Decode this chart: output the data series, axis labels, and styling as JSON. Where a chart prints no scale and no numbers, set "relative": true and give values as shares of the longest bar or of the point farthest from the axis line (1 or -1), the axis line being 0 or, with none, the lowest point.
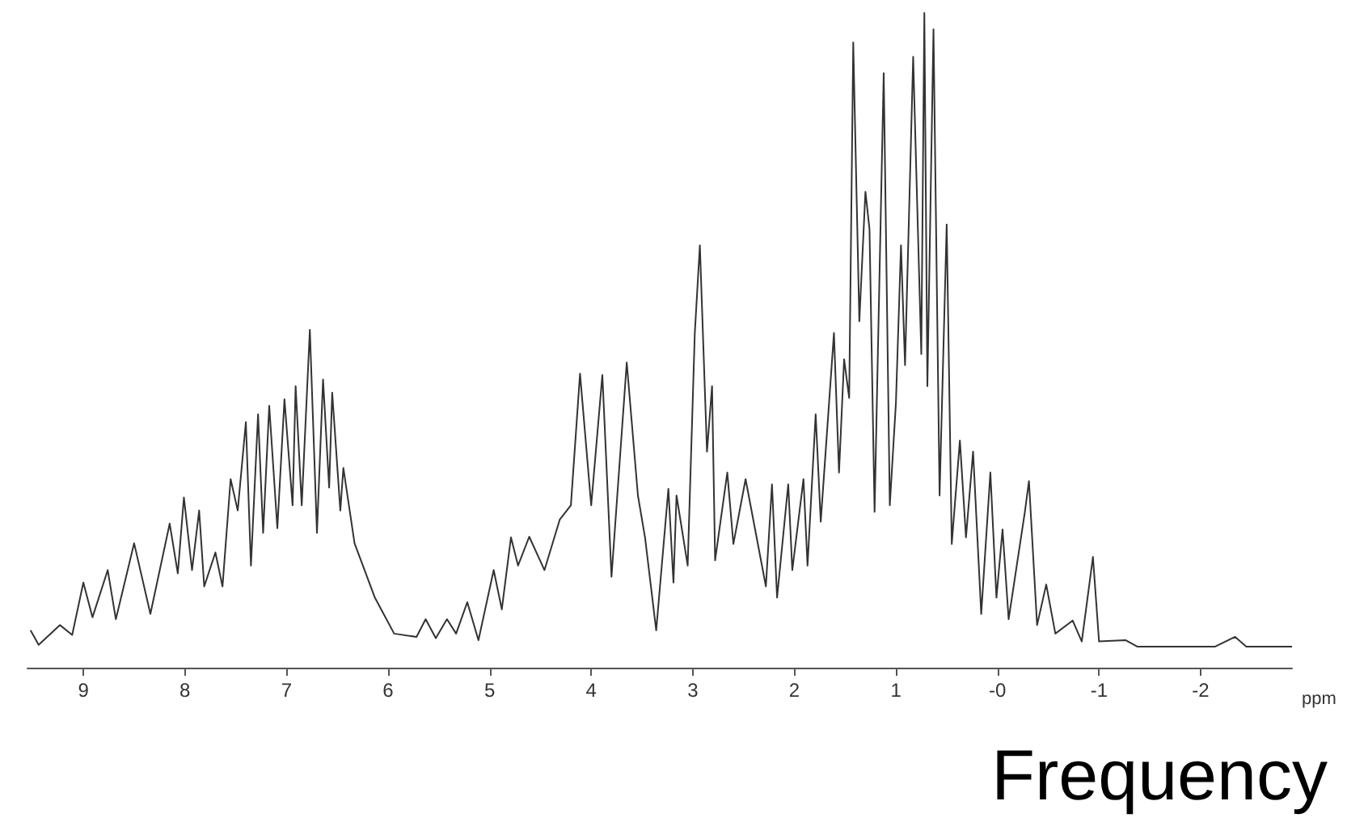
{
  "chart_data": {
    "type": "line",
    "relative": true,
    "xlabel": "ppm",
    "annotations": [
      "Frequency"
    ],
    "xlim": [
      9.55,
      -2.9
    ],
    "xticks": [
      9,
      8,
      7,
      6,
      5,
      4,
      3,
      2,
      1,
      {
        "value": 0,
        "label": "-0"
      },
      -1,
      -2
    ],
    "grid": false,
    "marker": "none",
    "line_style": "solid",
    "series": [
      {
        "color": "#333333",
        "x": [
          9.52,
          9.44,
          9.23,
          9.11,
          9.0,
          8.91,
          8.76,
          8.68,
          8.5,
          8.34,
          8.15,
          8.07,
          8.01,
          7.93,
          7.86,
          7.81,
          7.7,
          7.63,
          7.55,
          7.48,
          7.4,
          7.35,
          7.28,
          7.23,
          7.17,
          7.09,
          7.02,
          6.94,
          6.91,
          6.85,
          6.77,
          6.7,
          6.64,
          6.58,
          6.55,
          6.47,
          6.44,
          6.33,
          6.13,
          5.94,
          5.72,
          5.63,
          5.53,
          5.42,
          5.33,
          5.22,
          5.11,
          4.96,
          4.88,
          4.79,
          4.72,
          4.61,
          4.46,
          4.31,
          4.2,
          4.11,
          4.0,
          3.89,
          3.8,
          3.65,
          3.54,
          3.47,
          3.36,
          3.24,
          3.19,
          3.16,
          3.05,
          2.98,
          2.93,
          2.86,
          2.81,
          2.78,
          2.66,
          2.6,
          2.48,
          2.28,
          2.22,
          2.17,
          2.06,
          2.02,
          1.91,
          1.87,
          1.79,
          1.74,
          1.61,
          1.56,
          1.51,
          1.46,
          1.42,
          1.36,
          1.3,
          1.26,
          1.21,
          1.12,
          1.06,
          1.0,
          0.95,
          0.91,
          0.83,
          0.75,
          0.72,
          0.69,
          0.63,
          0.57,
          0.5,
          0.45,
          0.37,
          0.31,
          0.24,
          0.16,
          0.07,
          0.01,
          -0.05,
          -0.11,
          -0.27,
          -0.31,
          -0.39,
          -0.48,
          -0.57,
          -0.74,
          -0.83,
          -0.94,
          -1.0,
          -1.26,
          -1.38,
          -2.14,
          -2.34,
          -2.45,
          -2.9
        ],
        "values": [
          0.057,
          0.035,
          0.065,
          0.05,
          0.13,
          0.077,
          0.149,
          0.074,
          0.19,
          0.082,
          0.22,
          0.144,
          0.26,
          0.149,
          0.24,
          0.124,
          0.176,
          0.124,
          0.288,
          0.24,
          0.375,
          0.156,
          0.387,
          0.206,
          0.4,
          0.213,
          0.41,
          0.248,
          0.43,
          0.248,
          0.516,
          0.206,
          0.44,
          0.275,
          0.42,
          0.24,
          0.305,
          0.19,
          0.107,
          0.052,
          0.047,
          0.074,
          0.045,
          0.074,
          0.052,
          0.1,
          0.042,
          0.149,
          0.089,
          0.199,
          0.156,
          0.2,
          0.149,
          0.226,
          0.248,
          0.449,
          0.248,
          0.447,
          0.139,
          0.466,
          0.263,
          0.199,
          0.057,
          0.273,
          0.13,
          0.263,
          0.156,
          0.511,
          0.645,
          0.33,
          0.43,
          0.164,
          0.298,
          0.189,
          0.288,
          0.124,
          0.28,
          0.107,
          0.28,
          0.149,
          0.288,
          0.156,
          0.387,
          0.223,
          0.511,
          0.298,
          0.471,
          0.412,
          0.955,
          0.529,
          0.727,
          0.67,
          0.238,
          0.908,
          0.248,
          0.404,
          0.645,
          0.462,
          0.933,
          0.479,
          1.0,
          0.43,
          0.975,
          0.263,
          0.677,
          0.189,
          0.347,
          0.199,
          0.33,
          0.082,
          0.298,
          0.107,
          0.211,
          0.074,
          0.238,
          0.285,
          0.065,
          0.127,
          0.052,
          0.072,
          0.04,
          0.169,
          0.04,
          0.042,
          0.032,
          0.032,
          0.047,
          0.032,
          0.032
        ]
      }
    ]
  }
}
